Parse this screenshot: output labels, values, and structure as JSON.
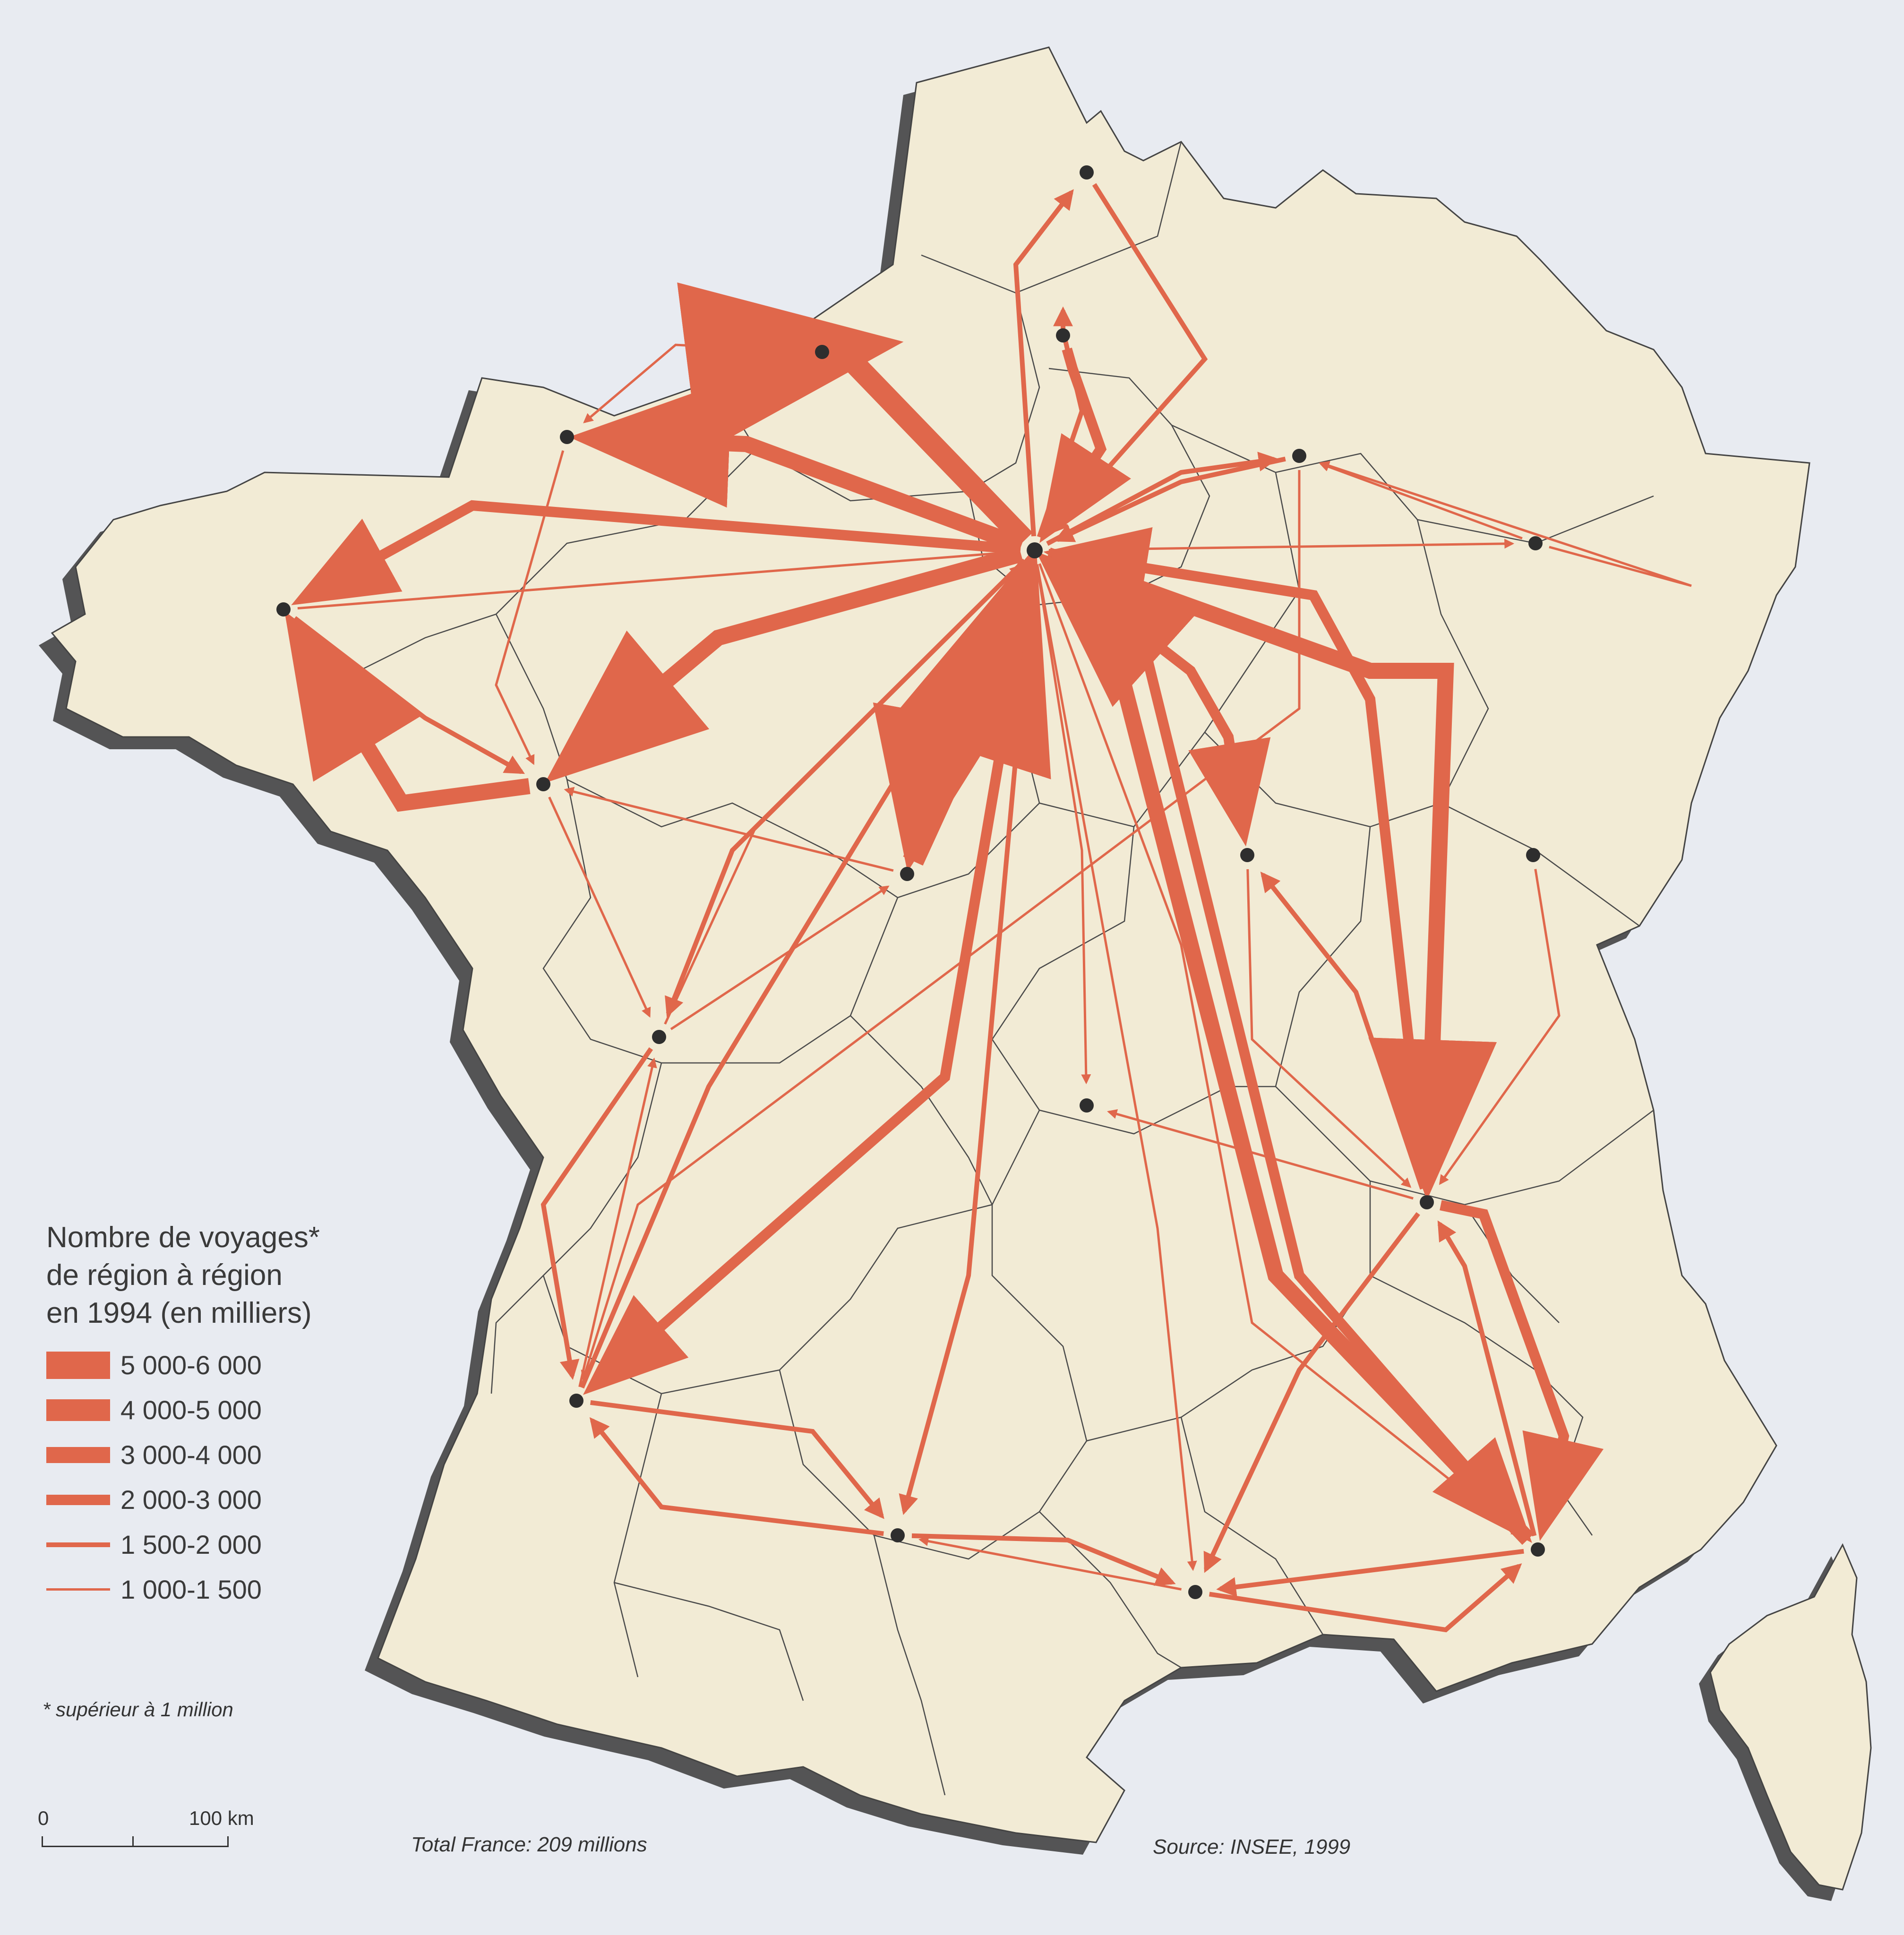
{
  "map": {
    "land_color": "#f2ebd5",
    "sea_color": "#e8ebf1",
    "boundary_color": "#4a4a4a",
    "flow_color": "#e0674b",
    "node_color": "#2e2e2e"
  },
  "legend": {
    "title_lines": [
      "Nombre de voyages*",
      "de région à région",
      "en 1994 (en milliers)"
    ],
    "classes": [
      {
        "label": "5 000-6 000",
        "level": 6
      },
      {
        "label": "4 000-5 000",
        "level": 5
      },
      {
        "label": "3 000-4 000",
        "level": 4
      },
      {
        "label": "2 000-3 000",
        "level": 3
      },
      {
        "label": "1 500-2 000",
        "level": 2
      },
      {
        "label": "1 000-1 500",
        "level": 1
      }
    ]
  },
  "footnote": "* supérieur à 1 million",
  "total": "Total France: 209 millions",
  "source": "Source: INSEE, 1999",
  "scale": {
    "zero": "0",
    "distance": "100 km"
  }
}
